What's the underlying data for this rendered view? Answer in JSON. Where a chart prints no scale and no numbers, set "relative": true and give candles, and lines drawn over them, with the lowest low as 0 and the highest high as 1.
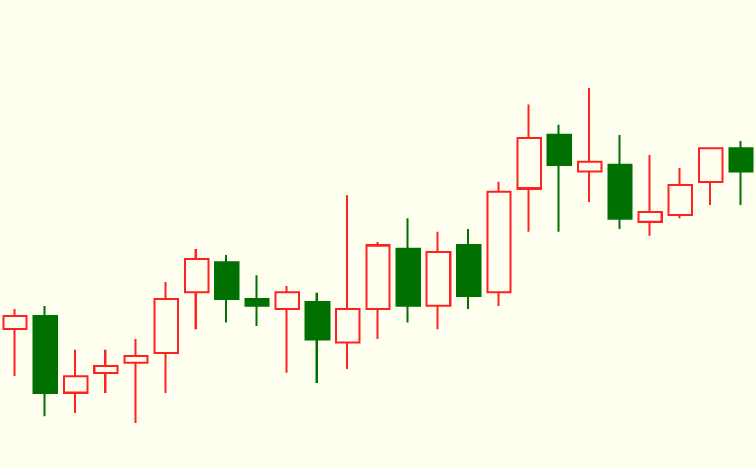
{
  "chart_data": {
    "type": "candlestick",
    "relative": true,
    "categories": [
      null,
      null,
      null,
      null,
      null,
      null,
      null,
      null,
      null,
      null,
      null,
      null,
      null,
      null,
      null,
      null,
      null,
      null,
      null,
      null,
      null,
      null,
      null,
      null,
      null
    ],
    "ohlc": [
      [
        0.28,
        0.34,
        0.14,
        0.32
      ],
      [
        0.32,
        0.35,
        0.02,
        0.09
      ],
      [
        0.09,
        0.22,
        0.03,
        0.14
      ],
      [
        0.15,
        0.22,
        0.09,
        0.17
      ],
      [
        0.18,
        0.25,
        0,
        0.2
      ],
      [
        0.21,
        0.42,
        0.09,
        0.37
      ],
      [
        0.39,
        0.52,
        0.28,
        0.49
      ],
      [
        0.48,
        0.5,
        0.3,
        0.37
      ],
      [
        0.37,
        0.44,
        0.29,
        0.35
      ],
      [
        0.34,
        0.41,
        0.15,
        0.39
      ],
      [
        0.36,
        0.39,
        0.12,
        0.25
      ],
      [
        0.24,
        0.68,
        0.16,
        0.34
      ],
      [
        0.34,
        0.54,
        0.25,
        0.53
      ],
      [
        0.52,
        0.61,
        0.3,
        0.35
      ],
      [
        0.35,
        0.57,
        0.28,
        0.51
      ],
      [
        0.53,
        0.58,
        0.34,
        0.38
      ],
      [
        0.39,
        0.72,
        0.35,
        0.69
      ],
      [
        0.7,
        0.95,
        0.57,
        0.85
      ],
      [
        0.86,
        0.89,
        0.57,
        0.77
      ],
      [
        0.75,
        1,
        0.66,
        0.78
      ],
      [
        0.77,
        0.86,
        0.58,
        0.61
      ],
      [
        0.6,
        0.8,
        0.56,
        0.63
      ],
      [
        0.62,
        0.76,
        0.61,
        0.71
      ],
      [
        0.72,
        0.82,
        0.65,
        0.82
      ],
      [
        0.82,
        0.84,
        0.65,
        0.75
      ]
    ],
    "colors": [
      "#ff2020",
      "#007000",
      "#ff2020",
      "#ff2020",
      "#ff2020",
      "#ff2020",
      "#ff2020",
      "#007000",
      "#007000",
      "#ff2020",
      "#007000",
      "#ff2020",
      "#ff2020",
      "#007000",
      "#ff2020",
      "#007000",
      "#ff2020",
      "#ff2020",
      "#007000",
      "#ff2020",
      "#007000",
      "#ff2020",
      "#ff2020",
      "#ff2020",
      "#007000"
    ]
  }
}
